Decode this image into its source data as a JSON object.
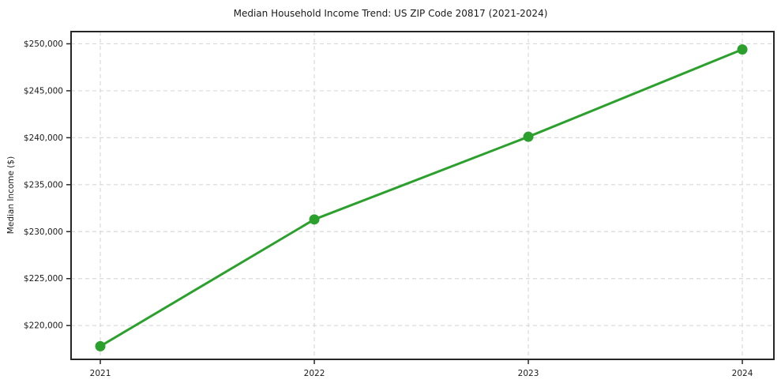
{
  "chart_data": {
    "type": "line",
    "title": "Median Household Income Trend: US ZIP Code 20817 (2021-2024)",
    "xlabel": "",
    "ylabel": "Median Income ($)",
    "categories": [
      "2021",
      "2022",
      "2023",
      "2024"
    ],
    "values": [
      217800,
      231300,
      240100,
      249400
    ],
    "yticks": [
      220000,
      225000,
      230000,
      235000,
      240000,
      245000,
      250000
    ],
    "ytick_labels": [
      "$220,000",
      "$225,000",
      "$230,000",
      "$235,000",
      "$240,000",
      "$245,000",
      "$250,000"
    ],
    "ylim": [
      216400,
      251300
    ],
    "grid": true,
    "legend_position": "none",
    "colors": {
      "line": "#2ca02c",
      "marker": "#2ca02c",
      "grid": "#d9d9d9",
      "spine": "#262626",
      "text": "#1a1a1a",
      "background": "#ffffff"
    }
  }
}
